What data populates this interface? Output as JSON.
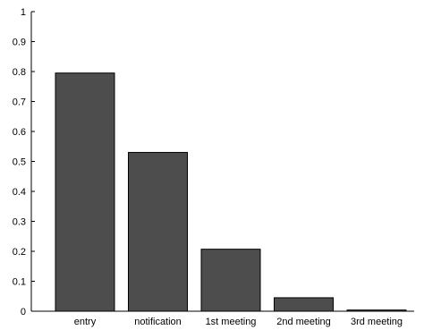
{
  "chart_data": {
    "type": "bar",
    "title": "",
    "xlabel": "",
    "ylabel": "",
    "categories": [
      "entry",
      "notification",
      "1st meeting",
      "2nd meeting",
      "3rd meeting"
    ],
    "values": [
      0.795,
      0.53,
      0.207,
      0.045,
      0.004
    ],
    "ylim": [
      0,
      1
    ],
    "yticks": [
      "0",
      "0.1",
      "0.2",
      "0.3",
      "0.4",
      "0.5",
      "0.6",
      "0.7",
      "0.8",
      "0.9",
      "1"
    ],
    "grid": false,
    "legend": "none",
    "bar_color": "#4d4d4d",
    "bar_edge_color": "#000000"
  }
}
